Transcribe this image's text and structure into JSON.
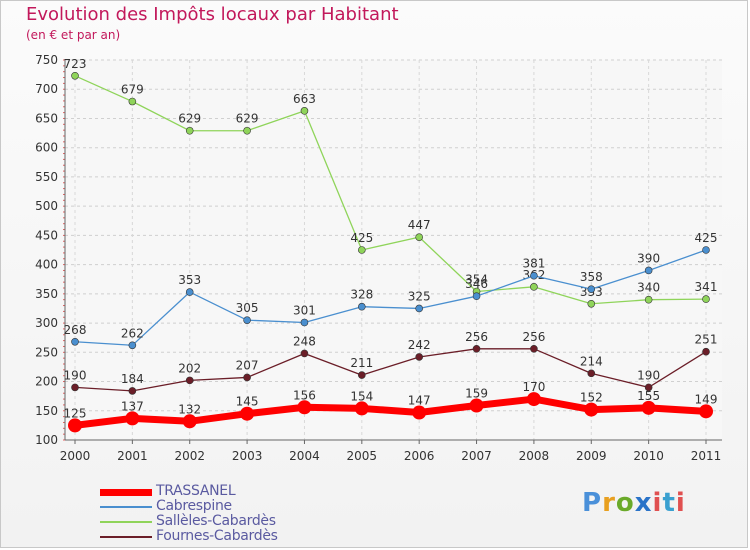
{
  "header": {
    "title": "Evolution des Impôts locaux par Habitant",
    "subtitle": "(en € et par an)"
  },
  "brand": {
    "logo_text": "Proxiti"
  },
  "chart_data": {
    "type": "line",
    "title": "Evolution des Impôts locaux par Habitant",
    "subtitle": "(en € et par an)",
    "xlabel": "",
    "ylabel": "",
    "x": [
      "2000",
      "2001",
      "2002",
      "2003",
      "2004",
      "2005",
      "2006",
      "2007",
      "2008",
      "2009",
      "2010",
      "2011"
    ],
    "ylim": [
      100,
      750
    ],
    "yticks": [
      100,
      150,
      200,
      250,
      300,
      350,
      400,
      450,
      500,
      550,
      600,
      650,
      700,
      750
    ],
    "grid": true,
    "legend_position": "bottom-left",
    "series": [
      {
        "name": "TRASSANEL",
        "color": "#ff0000",
        "values": [
          125,
          137,
          132,
          145,
          156,
          154,
          147,
          159,
          170,
          152,
          155,
          149
        ]
      },
      {
        "name": "Cabrespine",
        "color": "#4a8fcf",
        "values": [
          268,
          262,
          353,
          305,
          301,
          328,
          325,
          346,
          381,
          358,
          390,
          425
        ]
      },
      {
        "name": "Sallèles-Cabardès",
        "color": "#8fd45a",
        "values": [
          723,
          679,
          629,
          629,
          663,
          425,
          447,
          354,
          362,
          333,
          340,
          341
        ]
      },
      {
        "name": "Fournes-Cabardès",
        "color": "#6b1e28",
        "values": [
          190,
          184,
          202,
          207,
          248,
          211,
          242,
          256,
          256,
          214,
          190,
          251
        ]
      }
    ]
  }
}
